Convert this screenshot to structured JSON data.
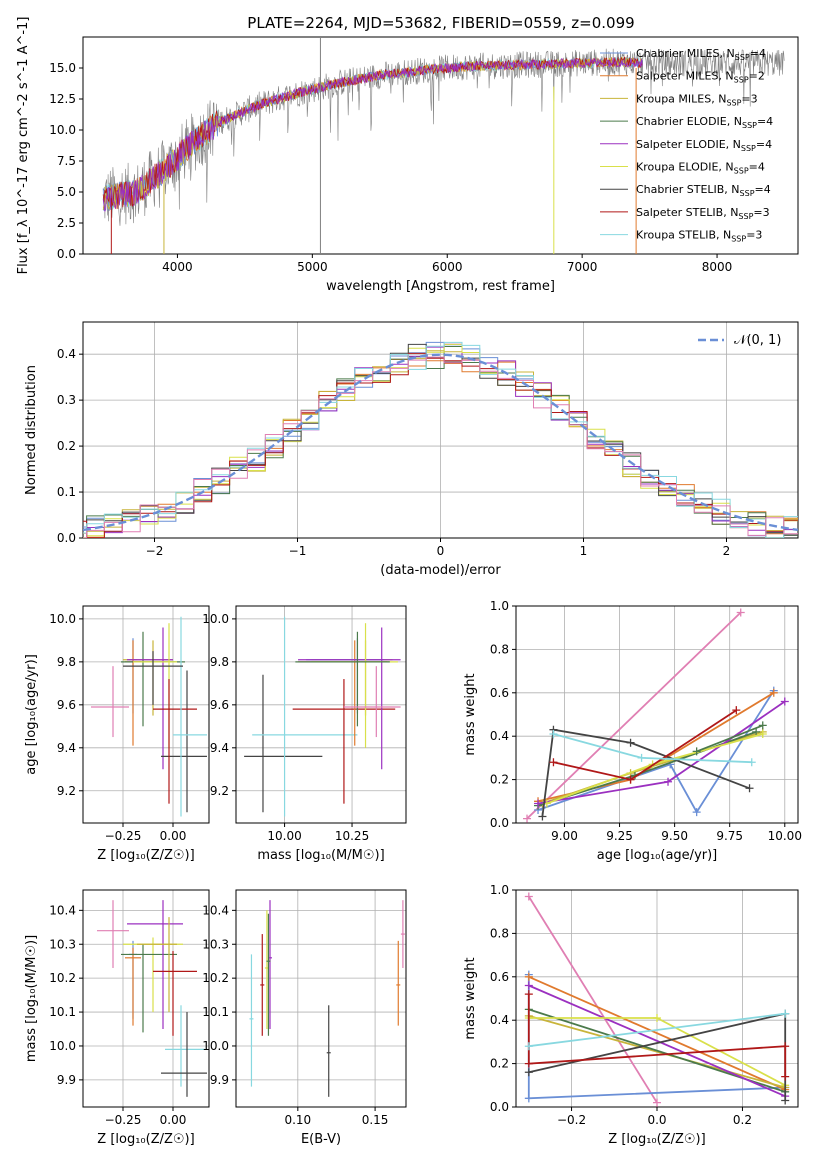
{
  "title": "PLATE=2264, MJD=53682, FIBERID=0559, z=0.099",
  "colors": {
    "Chabrier MILES": "#6a8fd6",
    "Salpeter MILES": "#e07a2e",
    "Kroupa MILES": "#c8b43a",
    "Chabrier ELODIE": "#4b7a4b",
    "Salpeter ELODIE": "#9b30c0",
    "Kroupa ELODIE": "#d9e04a",
    "Chabrier STELIB": "#444444",
    "Salpeter STELIB": "#b01818",
    "Kroupa STELIB": "#88d8e0",
    "gray spectrum": "#808080",
    "pink": "#e07fb3",
    "normal": "#6a8fd6"
  },
  "chart_data": [
    {
      "type": "line",
      "panel": "spectrum",
      "xlabel": "wavelength [Angstrom, rest frame]",
      "ylabel": "Flux [f_λ 10^-17 erg cm^-2 s^-1 A^-1]",
      "xticks": [
        "4000",
        "5000",
        "6000",
        "7000",
        "8000"
      ],
      "yticks": [
        "0.0",
        "2.5",
        "5.0",
        "7.5",
        "10.0",
        "12.5",
        "15.0"
      ],
      "xlim": [
        3300,
        8600
      ],
      "ylim": [
        0,
        17.5
      ],
      "legend_position": "right",
      "legend": [
        {
          "label": "Chabrier MILES, N",
          "sub": "SSP",
          "suffix": "=4",
          "key": "Chabrier MILES"
        },
        {
          "label": "Salpeter MILES, N",
          "sub": "SSP",
          "suffix": "=2",
          "key": "Salpeter MILES"
        },
        {
          "label": "Kroupa MILES, N",
          "sub": "SSP",
          "suffix": "=3",
          "key": "Kroupa MILES"
        },
        {
          "label": "Chabrier ELODIE, N",
          "sub": "SSP",
          "suffix": "=4",
          "key": "Chabrier ELODIE"
        },
        {
          "label": "Salpeter ELODIE, N",
          "sub": "SSP",
          "suffix": "=4",
          "key": "Salpeter ELODIE"
        },
        {
          "label": "Kroupa ELODIE, N",
          "sub": "SSP",
          "suffix": "=4",
          "key": "Kroupa ELODIE"
        },
        {
          "label": "Chabrier STELIB, N",
          "sub": "SSP",
          "suffix": "=4",
          "key": "Chabrier STELIB"
        },
        {
          "label": "Salpeter STELIB, N",
          "sub": "SSP",
          "suffix": "=3",
          "key": "Salpeter STELIB"
        },
        {
          "label": "Kroupa STELIB, N",
          "sub": "SSP",
          "suffix": "=3",
          "key": "Kroupa STELIB"
        }
      ],
      "continuum": {
        "x": [
          3450,
          3700,
          3900,
          4100,
          4300,
          4600,
          4900,
          5200,
          5500,
          5800,
          6100,
          6400,
          6700,
          7000,
          7300,
          7450
        ],
        "y": [
          4.5,
          5.0,
          6.8,
          8.8,
          10.6,
          12.0,
          13.0,
          13.8,
          14.4,
          14.8,
          15.1,
          15.2,
          15.3,
          15.4,
          15.5,
          15.4
        ]
      },
      "data_extent": [
        3450,
        8500
      ],
      "spikes": [
        {
          "x": 5060,
          "y0": 0,
          "y1": 17.5,
          "key": "gray spectrum"
        },
        {
          "x": 6790,
          "y0": 0,
          "y1": 13.5,
          "key": "Kroupa ELODIE"
        },
        {
          "x": 3510,
          "y0": 0,
          "y1": 4.5,
          "key": "Salpeter STELIB"
        },
        {
          "x": 3900,
          "y0": 0,
          "y1": 6.0,
          "key": "Kroupa MILES"
        },
        {
          "x": 7400,
          "y0": 0,
          "y1": 15.0,
          "key": "Salpeter MILES"
        }
      ]
    },
    {
      "type": "line",
      "panel": "residual histogram",
      "xlabel": "(data-model)/error",
      "ylabel": "Normed distribution",
      "xticks": [
        "−2",
        "−1",
        "0",
        "1",
        "2"
      ],
      "yticks": [
        "0.0",
        "0.1",
        "0.2",
        "0.3",
        "0.4"
      ],
      "xlim": [
        -2.5,
        2.5
      ],
      "ylim": [
        0,
        0.47
      ],
      "legend_label": "𝒩(0, 1)",
      "legend_position": "top-right",
      "normal_curve": {
        "mu": 0,
        "sigma": 1,
        "style": "dashed"
      }
    },
    {
      "type": "scatter",
      "panel": "Z vs age",
      "xlabel": "Z [log₁₀(Z/Z☉)]",
      "ylabel": "age  [log₁₀(age/yr)]",
      "xticks": [
        "−0.25",
        "0.00"
      ],
      "yticks": [
        "9.2",
        "9.4",
        "9.6",
        "9.8",
        "10.0"
      ],
      "xlim": [
        -0.45,
        0.18
      ],
      "ylim": [
        9.05,
        10.06
      ],
      "points": [
        {
          "key": "Chabrier MILES",
          "x": -0.2,
          "xlo": -0.22,
          "xhi": -0.18,
          "y": 9.81,
          "ylo": 9.56,
          "yhi": 9.91
        },
        {
          "key": "Salpeter MILES",
          "x": -0.2,
          "xlo": -0.24,
          "xhi": -0.16,
          "y": 9.8,
          "ylo": 9.41,
          "yhi": 9.9
        },
        {
          "key": "Kroupa MILES",
          "x": -0.1,
          "xlo": -0.25,
          "xhi": 0.0,
          "y": 9.81,
          "ylo": 9.55,
          "yhi": 9.9
        },
        {
          "key": "Chabrier ELODIE",
          "x": -0.15,
          "xlo": -0.26,
          "xhi": 0.06,
          "y": 9.8,
          "ylo": 9.5,
          "yhi": 9.94
        },
        {
          "key": "Salpeter ELODIE",
          "x": -0.05,
          "xlo": -0.23,
          "xhi": 0.0,
          "y": 9.81,
          "ylo": 9.3,
          "yhi": 9.96
        },
        {
          "key": "Kroupa ELODIE",
          "x": -0.02,
          "xlo": -0.2,
          "xhi": 0.02,
          "y": 9.8,
          "ylo": 9.4,
          "yhi": 9.98
        },
        {
          "key": "Chabrier STELIB",
          "x": 0.07,
          "xlo": -0.06,
          "xhi": 0.17,
          "y": 9.36,
          "ylo": 9.1,
          "yhi": 9.76
        },
        {
          "key": "Salpeter STELIB",
          "x": -0.02,
          "xlo": -0.1,
          "xhi": 0.12,
          "y": 9.58,
          "ylo": 9.14,
          "yhi": 9.72
        },
        {
          "key": "Kroupa STELIB",
          "x": 0.04,
          "xlo": 0.0,
          "xhi": 0.17,
          "y": 9.46,
          "ylo": 9.08,
          "yhi": 10.01
        },
        {
          "key": "pink",
          "x": -0.3,
          "xlo": -0.41,
          "xhi": -0.22,
          "y": 9.59,
          "ylo": 9.45,
          "yhi": 9.78
        },
        {
          "key": "Chabrier STELIB",
          "x": -0.1,
          "xlo": -0.25,
          "xhi": 0.05,
          "y": 9.78,
          "ylo": 9.6,
          "yhi": 9.85
        }
      ]
    },
    {
      "type": "scatter",
      "panel": "mass vs age",
      "xlabel": "mass [log₁₀(M/M☉)]",
      "ylabel": "",
      "xticks": [
        "10.00",
        "10.25"
      ],
      "yticks": [
        "9.2",
        "9.4",
        "9.6",
        "9.8",
        "10.0"
      ],
      "xlim": [
        9.82,
        10.45
      ],
      "ylim": [
        9.05,
        10.06
      ],
      "points": [
        {
          "key": "Chabrier STELIB",
          "x": 9.92,
          "xlo": 9.85,
          "xhi": 10.14,
          "y": 9.36,
          "ylo": 9.1,
          "yhi": 9.74
        },
        {
          "key": "Kroupa STELIB",
          "x": 10.0,
          "xlo": 9.88,
          "xhi": 10.27,
          "y": 9.46,
          "ylo": 9.08,
          "yhi": 10.01
        },
        {
          "key": "Salpeter STELIB",
          "x": 10.22,
          "xlo": 10.03,
          "xhi": 10.41,
          "y": 9.58,
          "ylo": 9.14,
          "yhi": 9.72
        },
        {
          "key": "Kroupa MILES",
          "x": 10.3,
          "xlo": 10.1,
          "xhi": 10.4,
          "y": 9.81,
          "ylo": 9.55,
          "yhi": 9.9
        },
        {
          "key": "Salpeter MILES",
          "x": 10.26,
          "xlo": 10.05,
          "xhi": 10.38,
          "y": 9.8,
          "ylo": 9.41,
          "yhi": 9.9
        },
        {
          "key": "Chabrier MILES",
          "x": 10.27,
          "xlo": 10.08,
          "xhi": 10.37,
          "y": 9.81,
          "ylo": 9.56,
          "yhi": 9.91
        },
        {
          "key": "Salpeter ELODIE",
          "x": 10.36,
          "xlo": 10.05,
          "xhi": 10.43,
          "y": 9.81,
          "ylo": 9.3,
          "yhi": 9.96
        },
        {
          "key": "Kroupa ELODIE",
          "x": 10.3,
          "xlo": 10.1,
          "xhi": 10.42,
          "y": 9.8,
          "ylo": 9.4,
          "yhi": 9.98
        },
        {
          "key": "Chabrier ELODIE",
          "x": 10.27,
          "xlo": 10.04,
          "xhi": 10.39,
          "y": 9.8,
          "ylo": 9.5,
          "yhi": 9.94
        },
        {
          "key": "pink",
          "x": 10.34,
          "xlo": 10.22,
          "xhi": 10.43,
          "y": 9.59,
          "ylo": 9.45,
          "yhi": 9.78
        }
      ]
    },
    {
      "type": "line",
      "panel": "age vs mass weight",
      "xlabel": "age  [log₁₀(age/yr)]",
      "ylabel": "mass weight",
      "xticks": [
        "9.00",
        "9.25",
        "9.50",
        "9.75",
        "10.00"
      ],
      "yticks": [
        "0.0",
        "0.2",
        "0.4",
        "0.6",
        "0.8",
        "1.0"
      ],
      "xlim": [
        8.78,
        10.06
      ],
      "ylim": [
        0,
        1.0
      ],
      "series": [
        {
          "key": "pink",
          "x": [
            8.83,
            9.8
          ],
          "y": [
            0.02,
            0.97
          ]
        },
        {
          "key": "Chabrier MILES",
          "x": [
            8.88,
            9.48,
            9.6,
            9.95
          ],
          "y": [
            0.06,
            0.27,
            0.05,
            0.61
          ]
        },
        {
          "key": "Salpeter MILES",
          "x": [
            8.88,
            9.3,
            9.95
          ],
          "y": [
            0.1,
            0.2,
            0.6
          ]
        },
        {
          "key": "Kroupa MILES",
          "x": [
            8.9,
            9.3,
            9.9
          ],
          "y": [
            0.09,
            0.23,
            0.42
          ]
        },
        {
          "key": "Chabrier ELODIE",
          "x": [
            8.88,
            9.32,
            9.87
          ],
          "y": [
            0.08,
            0.22,
            0.42
          ]
        },
        {
          "key": "Salpeter ELODIE",
          "x": [
            8.88,
            9.47,
            10.0
          ],
          "y": [
            0.09,
            0.19,
            0.56
          ]
        },
        {
          "key": "Kroupa ELODIE",
          "x": [
            8.92,
            9.4,
            9.9
          ],
          "y": [
            0.09,
            0.27,
            0.41
          ]
        },
        {
          "key": "Chabrier STELIB",
          "x": [
            8.9,
            8.95,
            9.3,
            9.84
          ],
          "y": [
            0.03,
            0.43,
            0.37,
            0.16
          ]
        },
        {
          "key": "Salpeter STELIB",
          "x": [
            8.95,
            9.3,
            9.78
          ],
          "y": [
            0.28,
            0.2,
            0.52
          ]
        },
        {
          "key": "Kroupa STELIB",
          "x": [
            8.95,
            9.35,
            9.85
          ],
          "y": [
            0.41,
            0.3,
            0.28
          ]
        },
        {
          "key": "Chabrier ELODIE",
          "x": [
            9.6,
            9.9
          ],
          "y": [
            0.33,
            0.45
          ]
        }
      ]
    },
    {
      "type": "scatter",
      "panel": "Z vs mass",
      "xlabel": "Z [log₁₀(Z/Z☉)]",
      "ylabel": "mass [log₁₀(M/M☉)]",
      "xticks": [
        "−0.25",
        "0.00"
      ],
      "yticks": [
        "9.9",
        "10.0",
        "10.1",
        "10.2",
        "10.3",
        "10.4"
      ],
      "xlim": [
        -0.45,
        0.18
      ],
      "ylim": [
        9.82,
        10.46
      ],
      "points": [
        {
          "key": "pink",
          "x": -0.3,
          "xlo": -0.38,
          "xhi": -0.22,
          "y": 10.34,
          "ylo": 10.23,
          "yhi": 10.43
        },
        {
          "key": "Chabrier MILES",
          "x": -0.2,
          "xlo": -0.22,
          "xhi": -0.18,
          "y": 10.27,
          "ylo": 10.08,
          "yhi": 10.31
        },
        {
          "key": "Salpeter MILES",
          "x": -0.2,
          "xlo": -0.24,
          "xhi": -0.16,
          "y": 10.26,
          "ylo": 10.06,
          "yhi": 10.29
        },
        {
          "key": "Kroupa ELODIE",
          "x": -0.1,
          "xlo": -0.25,
          "xhi": 0.05,
          "y": 10.3,
          "ylo": 10.1,
          "yhi": 10.32
        },
        {
          "key": "Chabrier ELODIE",
          "x": -0.15,
          "xlo": -0.26,
          "xhi": 0.02,
          "y": 10.27,
          "ylo": 10.04,
          "yhi": 10.3
        },
        {
          "key": "Salpeter ELODIE",
          "x": -0.05,
          "xlo": -0.23,
          "xhi": 0.05,
          "y": 10.36,
          "ylo": 10.05,
          "yhi": 10.43
        },
        {
          "key": "Kroupa MILES",
          "x": -0.02,
          "xlo": -0.18,
          "xhi": 0.02,
          "y": 10.3,
          "ylo": 10.1,
          "yhi": 10.38
        },
        {
          "key": "Salpeter STELIB",
          "x": 0.0,
          "xlo": -0.1,
          "xhi": 0.12,
          "y": 10.22,
          "ylo": 10.03,
          "yhi": 10.28
        },
        {
          "key": "Kroupa STELIB",
          "x": 0.04,
          "xlo": -0.04,
          "xhi": 0.16,
          "y": 9.99,
          "ylo": 9.88,
          "yhi": 10.12
        },
        {
          "key": "Chabrier STELIB",
          "x": 0.07,
          "xlo": -0.06,
          "xhi": 0.17,
          "y": 9.92,
          "ylo": 9.85,
          "yhi": 10.1
        }
      ]
    },
    {
      "type": "scatter",
      "panel": "E(B-V) vs mass",
      "xlabel": "E(B-V)",
      "ylabel": "",
      "xticks": [
        "0.10",
        "0.15"
      ],
      "yticks": [
        "9.9",
        "10.0",
        "10.1",
        "10.2",
        "10.3",
        "10.4"
      ],
      "xlim": [
        0.06,
        0.17
      ],
      "ylim": [
        9.82,
        10.46
      ],
      "points": [
        {
          "key": "Kroupa STELIB",
          "x": 0.07,
          "y": 10.08,
          "ylo": 9.88,
          "yhi": 10.27
        },
        {
          "key": "Salpeter STELIB",
          "x": 0.077,
          "y": 10.18,
          "ylo": 10.03,
          "yhi": 10.33
        },
        {
          "key": "Kroupa ELODIE",
          "x": 0.08,
          "y": 10.23,
          "ylo": 10.05,
          "yhi": 10.4
        },
        {
          "key": "Salpeter ELODIE",
          "x": 0.082,
          "y": 10.26,
          "ylo": 10.05,
          "yhi": 10.43
        },
        {
          "key": "Chabrier ELODIE",
          "x": 0.081,
          "y": 10.25,
          "ylo": 10.03,
          "yhi": 10.39
        },
        {
          "key": "Chabrier STELIB",
          "x": 0.12,
          "y": 9.98,
          "ylo": 9.85,
          "yhi": 10.12
        },
        {
          "key": "Salpeter MILES",
          "x": 0.165,
          "y": 10.18,
          "ylo": 10.06,
          "yhi": 10.31
        },
        {
          "key": "pink",
          "x": 0.168,
          "y": 10.33,
          "ylo": 10.23,
          "yhi": 10.43
        }
      ]
    },
    {
      "type": "line",
      "panel": "Z vs mass weight",
      "xlabel": "Z [log₁₀(Z/Z☉)]",
      "ylabel": "mass weight",
      "xticks": [
        "−0.2",
        "0.0",
        "0.2"
      ],
      "yticks": [
        "0.0",
        "0.2",
        "0.4",
        "0.6",
        "0.8",
        "1.0"
      ],
      "xlim": [
        -0.33,
        0.33
      ],
      "ylim": [
        0,
        1.0
      ],
      "series": [
        {
          "key": "pink",
          "x": [
            -0.3,
            0.0
          ],
          "y": [
            0.97,
            0.02
          ]
        },
        {
          "key": "Chabrier MILES",
          "x": [
            -0.3,
            -0.3,
            0.3
          ],
          "y": [
            0.61,
            0.04,
            0.09
          ]
        },
        {
          "key": "Salpeter MILES",
          "x": [
            -0.3,
            0.3
          ],
          "y": [
            0.6,
            0.08
          ]
        },
        {
          "key": "Kroupa MILES",
          "x": [
            -0.3,
            0.3
          ],
          "y": [
            0.42,
            0.09
          ]
        },
        {
          "key": "Chabrier ELODIE",
          "x": [
            -0.3,
            0.3
          ],
          "y": [
            0.45,
            0.07
          ]
        },
        {
          "key": "Salpeter ELODIE",
          "x": [
            -0.3,
            0.3
          ],
          "y": [
            0.56,
            0.05
          ]
        },
        {
          "key": "Kroupa ELODIE",
          "x": [
            -0.3,
            0.0,
            0.3
          ],
          "y": [
            0.41,
            0.41,
            0.1
          ]
        },
        {
          "key": "Chabrier STELIB",
          "x": [
            -0.3,
            0.3,
            0.3
          ],
          "y": [
            0.16,
            0.43,
            0.03
          ]
        },
        {
          "key": "Salpeter STELIB",
          "x": [
            -0.3,
            -0.3,
            0.3,
            0.3
          ],
          "y": [
            0.52,
            0.2,
            0.28,
            0.14
          ]
        },
        {
          "key": "Kroupa STELIB",
          "x": [
            -0.3,
            0.3
          ],
          "y": [
            0.28,
            0.43
          ]
        }
      ]
    }
  ]
}
